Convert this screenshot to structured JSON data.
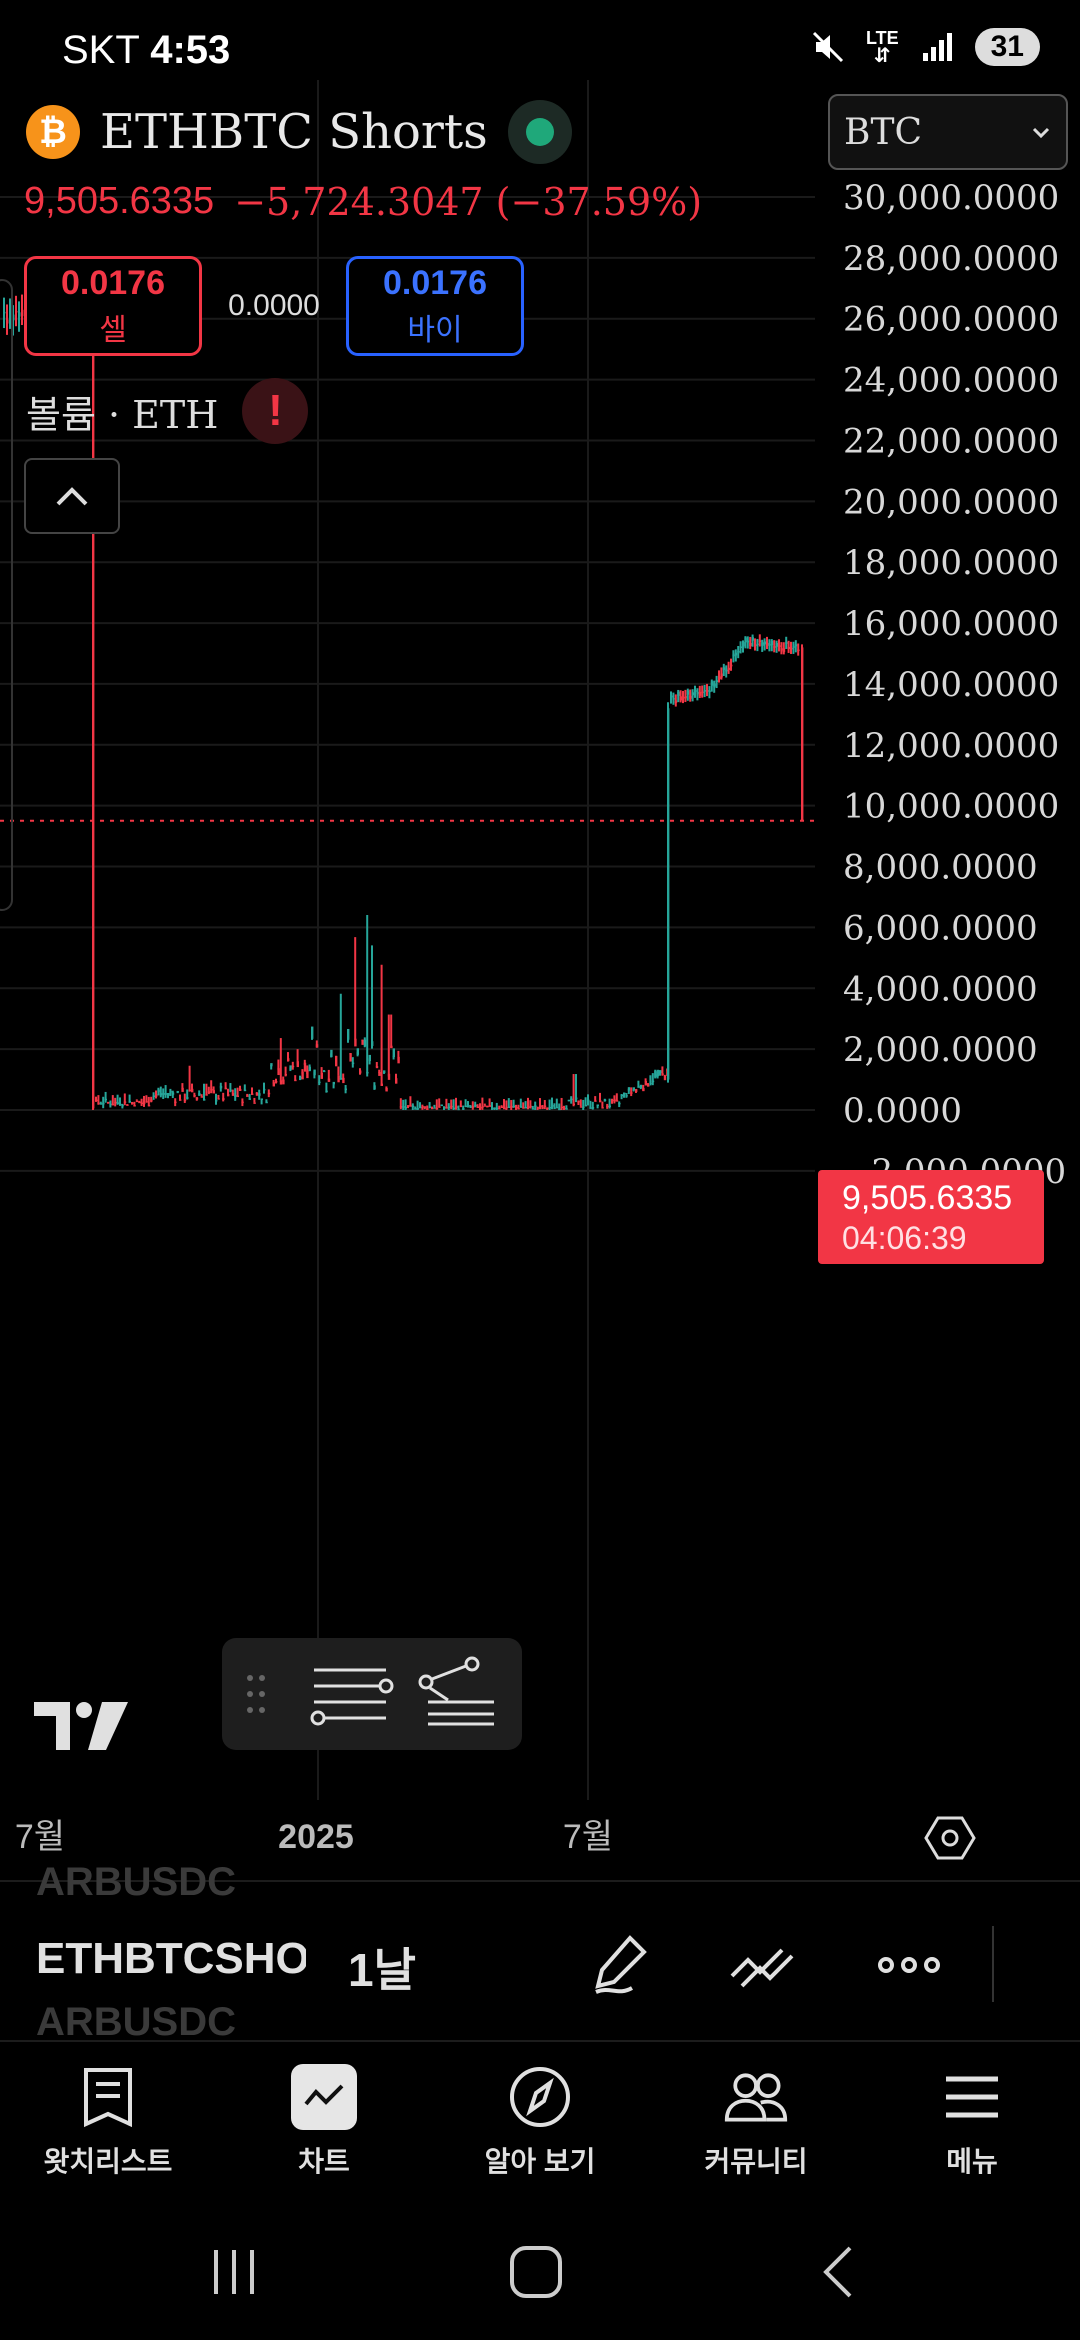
{
  "status_bar": {
    "carrier": "SKT",
    "time": "4:53",
    "network": "LTE",
    "battery": "31"
  },
  "symbol": {
    "coin_glyph": "₿",
    "title": "ETHBTC Shorts",
    "currency": "BTC"
  },
  "quote": {
    "price": "9,505.6335",
    "change": "−5,724.3047 (−37.59%)"
  },
  "trade": {
    "sell_value": "0.0176",
    "sell_label": "셀",
    "spread": "0.0000",
    "buy_value": "0.0176",
    "buy_label": "바이"
  },
  "volume": {
    "label": "볼륨 · ETH",
    "warning": "!"
  },
  "price_badge": {
    "price": "9,505.6335",
    "countdown": "04:06:39"
  },
  "toolbar": {
    "ghost_symbol": "ARBUSDC",
    "symbol": "ETHBTCSHORTS",
    "interval": "1날"
  },
  "nav": {
    "items": [
      {
        "label": "왓치리스트",
        "icon": "watchlist-icon"
      },
      {
        "label": "차트",
        "icon": "chart-icon"
      },
      {
        "label": "알아 보기",
        "icon": "compass-icon"
      },
      {
        "label": "커뮤니티",
        "icon": "community-icon"
      },
      {
        "label": "메뉴",
        "icon": "menu-icon"
      }
    ]
  },
  "colors": {
    "up": "#26a69a",
    "down": "#f23645",
    "buy": "#2962ff"
  },
  "chart_data": {
    "type": "candlestick",
    "series_name": "ETHBTC Shorts",
    "y_ticks": [
      "30,000.0000",
      "28,000.0000",
      "26,000.0000",
      "24,000.0000",
      "22,000.0000",
      "20,000.0000",
      "18,000.0000",
      "16,000.0000",
      "14,000.0000",
      "12,000.0000",
      "10,000.0000",
      "8,000.0000",
      "6,000.0000",
      "4,000.0000",
      "2,000.0000",
      "0.0000",
      "−2,000.0000"
    ],
    "y_tick_values": [
      30000,
      28000,
      26000,
      24000,
      22000,
      20000,
      18000,
      16000,
      14000,
      12000,
      10000,
      8000,
      6000,
      4000,
      2000,
      0,
      -2000
    ],
    "x_ticks": [
      "7월",
      "2025",
      "7월"
    ],
    "ylim": [
      -2000,
      30000
    ],
    "last_price": 9505.6335,
    "grid": true,
    "approx_close_path": [
      {
        "t": "2024-06",
        "v": 26000
      },
      {
        "t": "2024-07",
        "v": 25800
      },
      {
        "t": "2024-07",
        "v": 0
      },
      {
        "t": "2024-10",
        "v": 200
      },
      {
        "t": "2024-12",
        "v": 900
      },
      {
        "t": "2025-01",
        "v": 1800
      },
      {
        "t": "2025-02",
        "v": 400
      },
      {
        "t": "2025-04",
        "v": 50
      },
      {
        "t": "2025-06",
        "v": 50
      },
      {
        "t": "2025-07",
        "v": 900
      },
      {
        "t": "2025-07",
        "v": 13500
      },
      {
        "t": "2025-08",
        "v": 13800
      },
      {
        "t": "2025-09",
        "v": 15500
      },
      {
        "t": "2025-10",
        "v": 15200
      },
      {
        "t": "2025-10",
        "v": 9505.6335
      }
    ]
  }
}
